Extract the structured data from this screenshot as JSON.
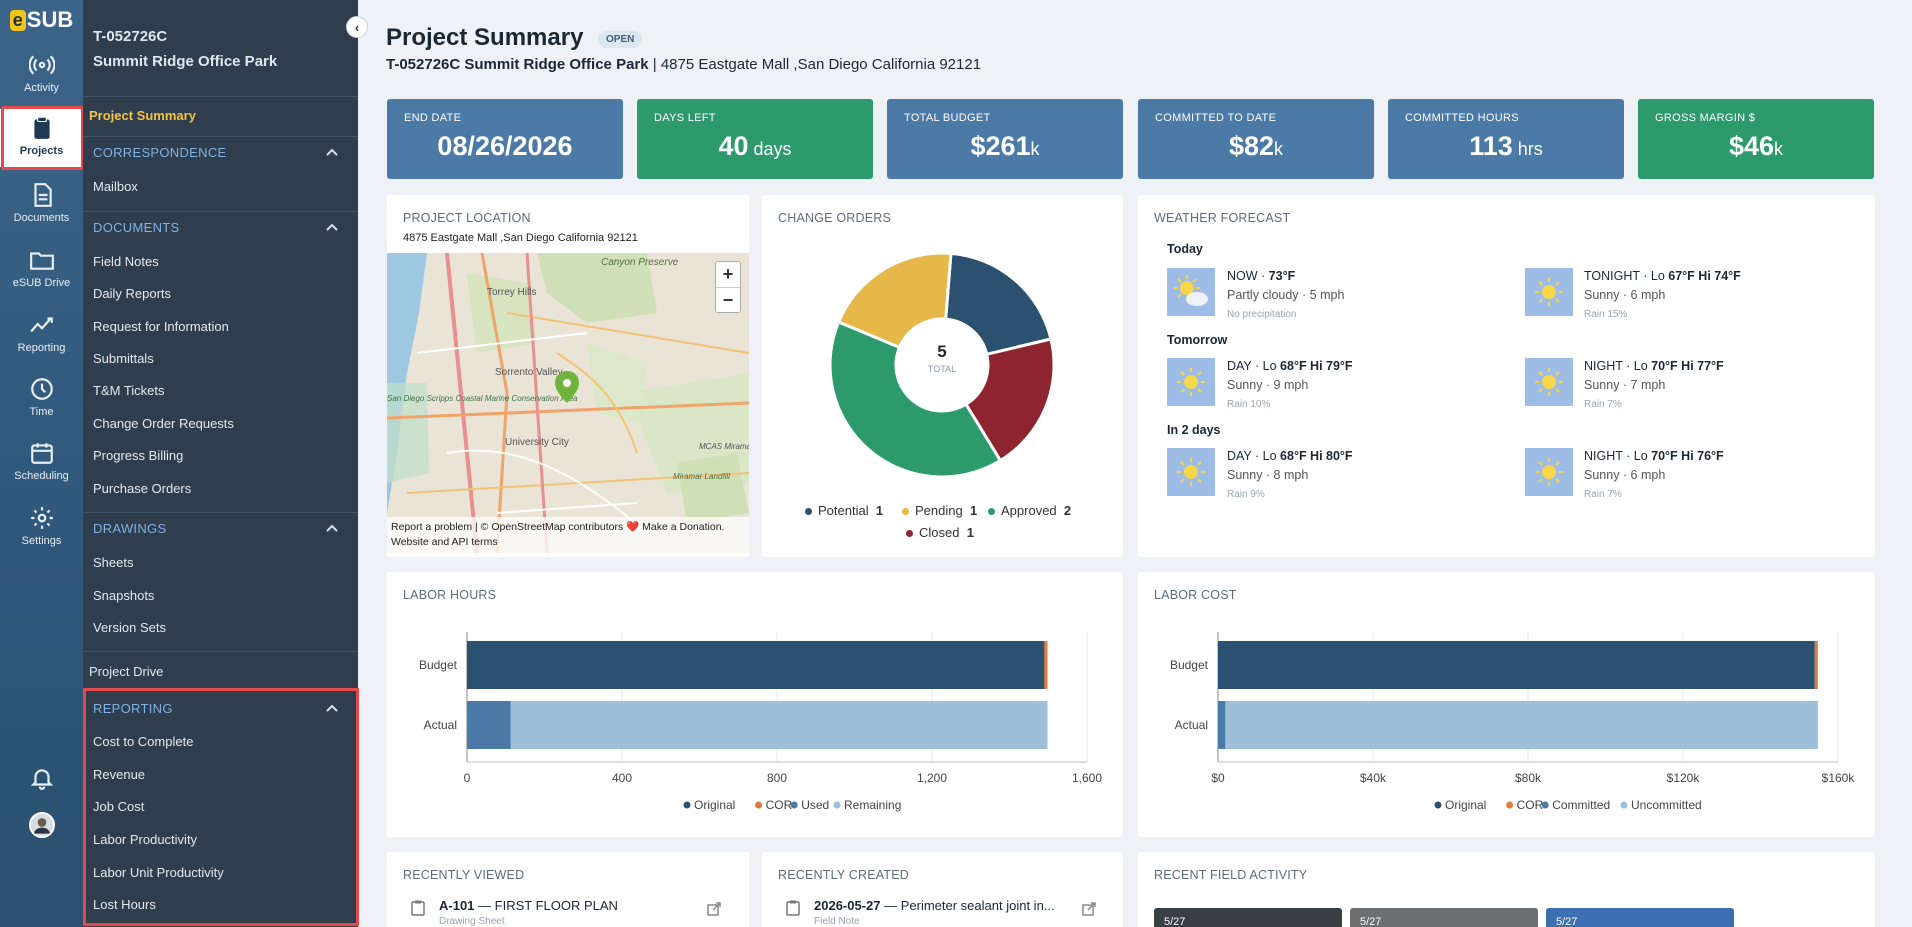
{
  "rail": {
    "logo": "SUB",
    "items": [
      {
        "label": "Activity",
        "icon": "activity-icon"
      },
      {
        "label": "Projects",
        "icon": "clipboard-icon"
      },
      {
        "label": "Documents",
        "icon": "document-icon"
      },
      {
        "label": "eSUB Drive",
        "icon": "folder-icon"
      },
      {
        "label": "Reporting",
        "icon": "chart-line-icon"
      },
      {
        "label": "Time",
        "icon": "clock-icon"
      },
      {
        "label": "Scheduling",
        "icon": "calendar-icon"
      },
      {
        "label": "Settings",
        "icon": "gear-icon"
      }
    ]
  },
  "sidebar": {
    "project_id": "T-052726C",
    "project_name": "Summit Ridge Office Park",
    "active": "Project Summary",
    "correspondence": {
      "title": "CORRESPONDENCE",
      "items": [
        "Mailbox"
      ]
    },
    "documents": {
      "title": "DOCUMENTS",
      "items": [
        "Field Notes",
        "Daily Reports",
        "Request for Information",
        "Submittals",
        "T&M Tickets",
        "Change Order Requests",
        "Progress Billing",
        "Purchase Orders"
      ]
    },
    "drawings": {
      "title": "DRAWINGS",
      "items": [
        "Sheets",
        "Snapshots",
        "Version Sets"
      ]
    },
    "project_drive": "Project Drive",
    "reporting": {
      "title": "REPORTING",
      "items": [
        "Cost to Complete",
        "Revenue",
        "Job Cost",
        "Labor Productivity",
        "Labor Unit Productivity",
        "Lost Hours"
      ]
    }
  },
  "header": {
    "title": "Project Summary",
    "status": "OPEN",
    "subtitle_bold": "T-052726C Summit Ridge Office Park",
    "subtitle_rest": " | 4875 Eastgate Mall ,San Diego California 92121"
  },
  "kpis": [
    {
      "label": "END DATE",
      "value": "08/26/2026",
      "unit": ""
    },
    {
      "label": "DAYS LEFT",
      "value": "40",
      "unit": " days"
    },
    {
      "label": "TOTAL BUDGET",
      "value": "$261",
      "unit": "k"
    },
    {
      "label": "COMMITTED TO DATE",
      "value": "$82",
      "unit": "k"
    },
    {
      "label": "COMMITTED HOURS",
      "value": "113",
      "unit": " hrs"
    },
    {
      "label": "GROSS MARGIN $",
      "value": "$46",
      "unit": "k"
    }
  ],
  "location": {
    "title": "PROJECT LOCATION",
    "address": "4875 Eastgate Mall ,San Diego California 92121",
    "zoom_in": "+",
    "zoom_out": "−",
    "attribution": "Report a problem | © OpenStreetMap contributors ❤️ Make a Donation. Website and API terms",
    "place_labels": [
      "Torrey Hills",
      "Canyon Preserve",
      "Sorrento Valley",
      "University City",
      "San Diego Scripps Coastal Marine Conservation Area",
      "MCAS Miramar Airfield",
      "Miramar Landfill"
    ]
  },
  "change_orders": {
    "title": "CHANGE ORDERS",
    "total": "5",
    "total_label": "TOTAL",
    "legend": [
      {
        "name": "Potential",
        "count": "1",
        "color": "#2c5070"
      },
      {
        "name": "Pending",
        "count": "1",
        "color": "#e6b84a"
      },
      {
        "name": "Approved",
        "count": "2",
        "color": "#2d9a6c"
      },
      {
        "name": "Closed",
        "count": "1",
        "color": "#8e2430"
      }
    ]
  },
  "weather": {
    "title": "WEATHER FORECAST",
    "days": [
      {
        "label": "Today",
        "left": {
          "head": "NOW · ",
          "temps": "73°F",
          "desc": "Partly cloudy · 5 mph",
          "extra": "No precipitation",
          "icon": "partly-cloudy-icon"
        },
        "right": {
          "head": "TONIGHT · Lo ",
          "temps": "67°F Hi 74°F",
          "desc": "Sunny · 6 mph",
          "extra": "Rain 15%",
          "icon": "sun-icon"
        }
      },
      {
        "label": "Tomorrow",
        "left": {
          "head": "DAY · Lo ",
          "temps": "68°F Hi 79°F",
          "desc": "Sunny · 9 mph",
          "extra": "Rain 10%",
          "icon": "sun-icon"
        },
        "right": {
          "head": "NIGHT · Lo ",
          "temps": "70°F Hi 77°F",
          "desc": "Sunny · 7 mph",
          "extra": "Rain 7%",
          "icon": "sun-icon"
        }
      },
      {
        "label": "In 2 days",
        "left": {
          "head": "DAY · Lo ",
          "temps": "68°F Hi 80°F",
          "desc": "Sunny · 8 mph",
          "extra": "Rain 9%",
          "icon": "sun-icon"
        },
        "right": {
          "head": "NIGHT · Lo ",
          "temps": "70°F Hi 76°F",
          "desc": "Sunny · 6 mph",
          "extra": "Rain 7%",
          "icon": "sun-icon"
        }
      }
    ]
  },
  "labor_hours": {
    "title": "LABOR HOURS",
    "legend": [
      "Original",
      "COR",
      "Used",
      "Remaining"
    ]
  },
  "labor_cost": {
    "title": "LABOR COST",
    "legend": [
      "Original",
      "COR",
      "Committed",
      "Uncommitted"
    ]
  },
  "chart_data": [
    {
      "type": "pie",
      "title": "CHANGE ORDERS",
      "categories": [
        "Potential",
        "Pending",
        "Approved",
        "Closed"
      ],
      "values": [
        1,
        1,
        2,
        1
      ],
      "colors": [
        "#2c5070",
        "#e6b84a",
        "#2d9a6c",
        "#8e2430"
      ],
      "start_order": [
        "Potential",
        "Closed",
        "Approved",
        "Pending"
      ]
    },
    {
      "type": "bar",
      "orientation": "horizontal",
      "stacked": true,
      "title": "LABOR HOURS",
      "categories": [
        "Budget",
        "Actual"
      ],
      "series": [
        {
          "name": "Original",
          "values": [
            1490,
            0
          ],
          "color": "#2c5070"
        },
        {
          "name": "COR",
          "values": [
            8,
            0
          ],
          "color": "#e07b39"
        },
        {
          "name": "Used",
          "values": [
            0,
            113
          ],
          "color": "#4b7aa7"
        },
        {
          "name": "Remaining",
          "values": [
            0,
            1385
          ],
          "color": "#9ebfda"
        }
      ],
      "xlim": [
        0,
        1600
      ],
      "xticks": [
        "0",
        "400",
        "800",
        "1,200",
        "1,600"
      ],
      "xtick_values": [
        0,
        400,
        800,
        1200,
        1600
      ],
      "grid": true,
      "legend_position": "bottom"
    },
    {
      "type": "bar",
      "orientation": "horizontal",
      "stacked": true,
      "title": "LABOR COST",
      "categories": [
        "Budget",
        "Actual"
      ],
      "series": [
        {
          "name": "Original",
          "values": [
            154000,
            0
          ],
          "color": "#2c5070"
        },
        {
          "name": "COR",
          "values": [
            800,
            0
          ],
          "color": "#e07b39"
        },
        {
          "name": "Committed",
          "values": [
            0,
            1900
          ],
          "color": "#4b7aa7"
        },
        {
          "name": "Uncommitted",
          "values": [
            0,
            152900
          ],
          "color": "#9ebfda"
        }
      ],
      "xlim": [
        0,
        160000
      ],
      "xticks": [
        "$0",
        "$40k",
        "$80k",
        "$120k",
        "$160k"
      ],
      "xtick_values": [
        0,
        40000,
        80000,
        120000,
        160000
      ],
      "grid": true,
      "legend_position": "bottom"
    }
  ],
  "recent": {
    "viewed_title": "RECENTLY VIEWED",
    "viewed_item_bold": "A-101",
    "viewed_item_rest": " — FIRST FLOOR PLAN",
    "viewed_item_type": "Drawing Sheet",
    "created_title": "RECENTLY CREATED",
    "created_item_bold": "2026-05-27",
    "created_item_rest": " — Perimeter sealant joint in...",
    "created_item_type": "Field Note",
    "field_title": "RECENT FIELD ACTIVITY",
    "thumb_dates": [
      "5/27",
      "5/27",
      "5/27"
    ]
  }
}
